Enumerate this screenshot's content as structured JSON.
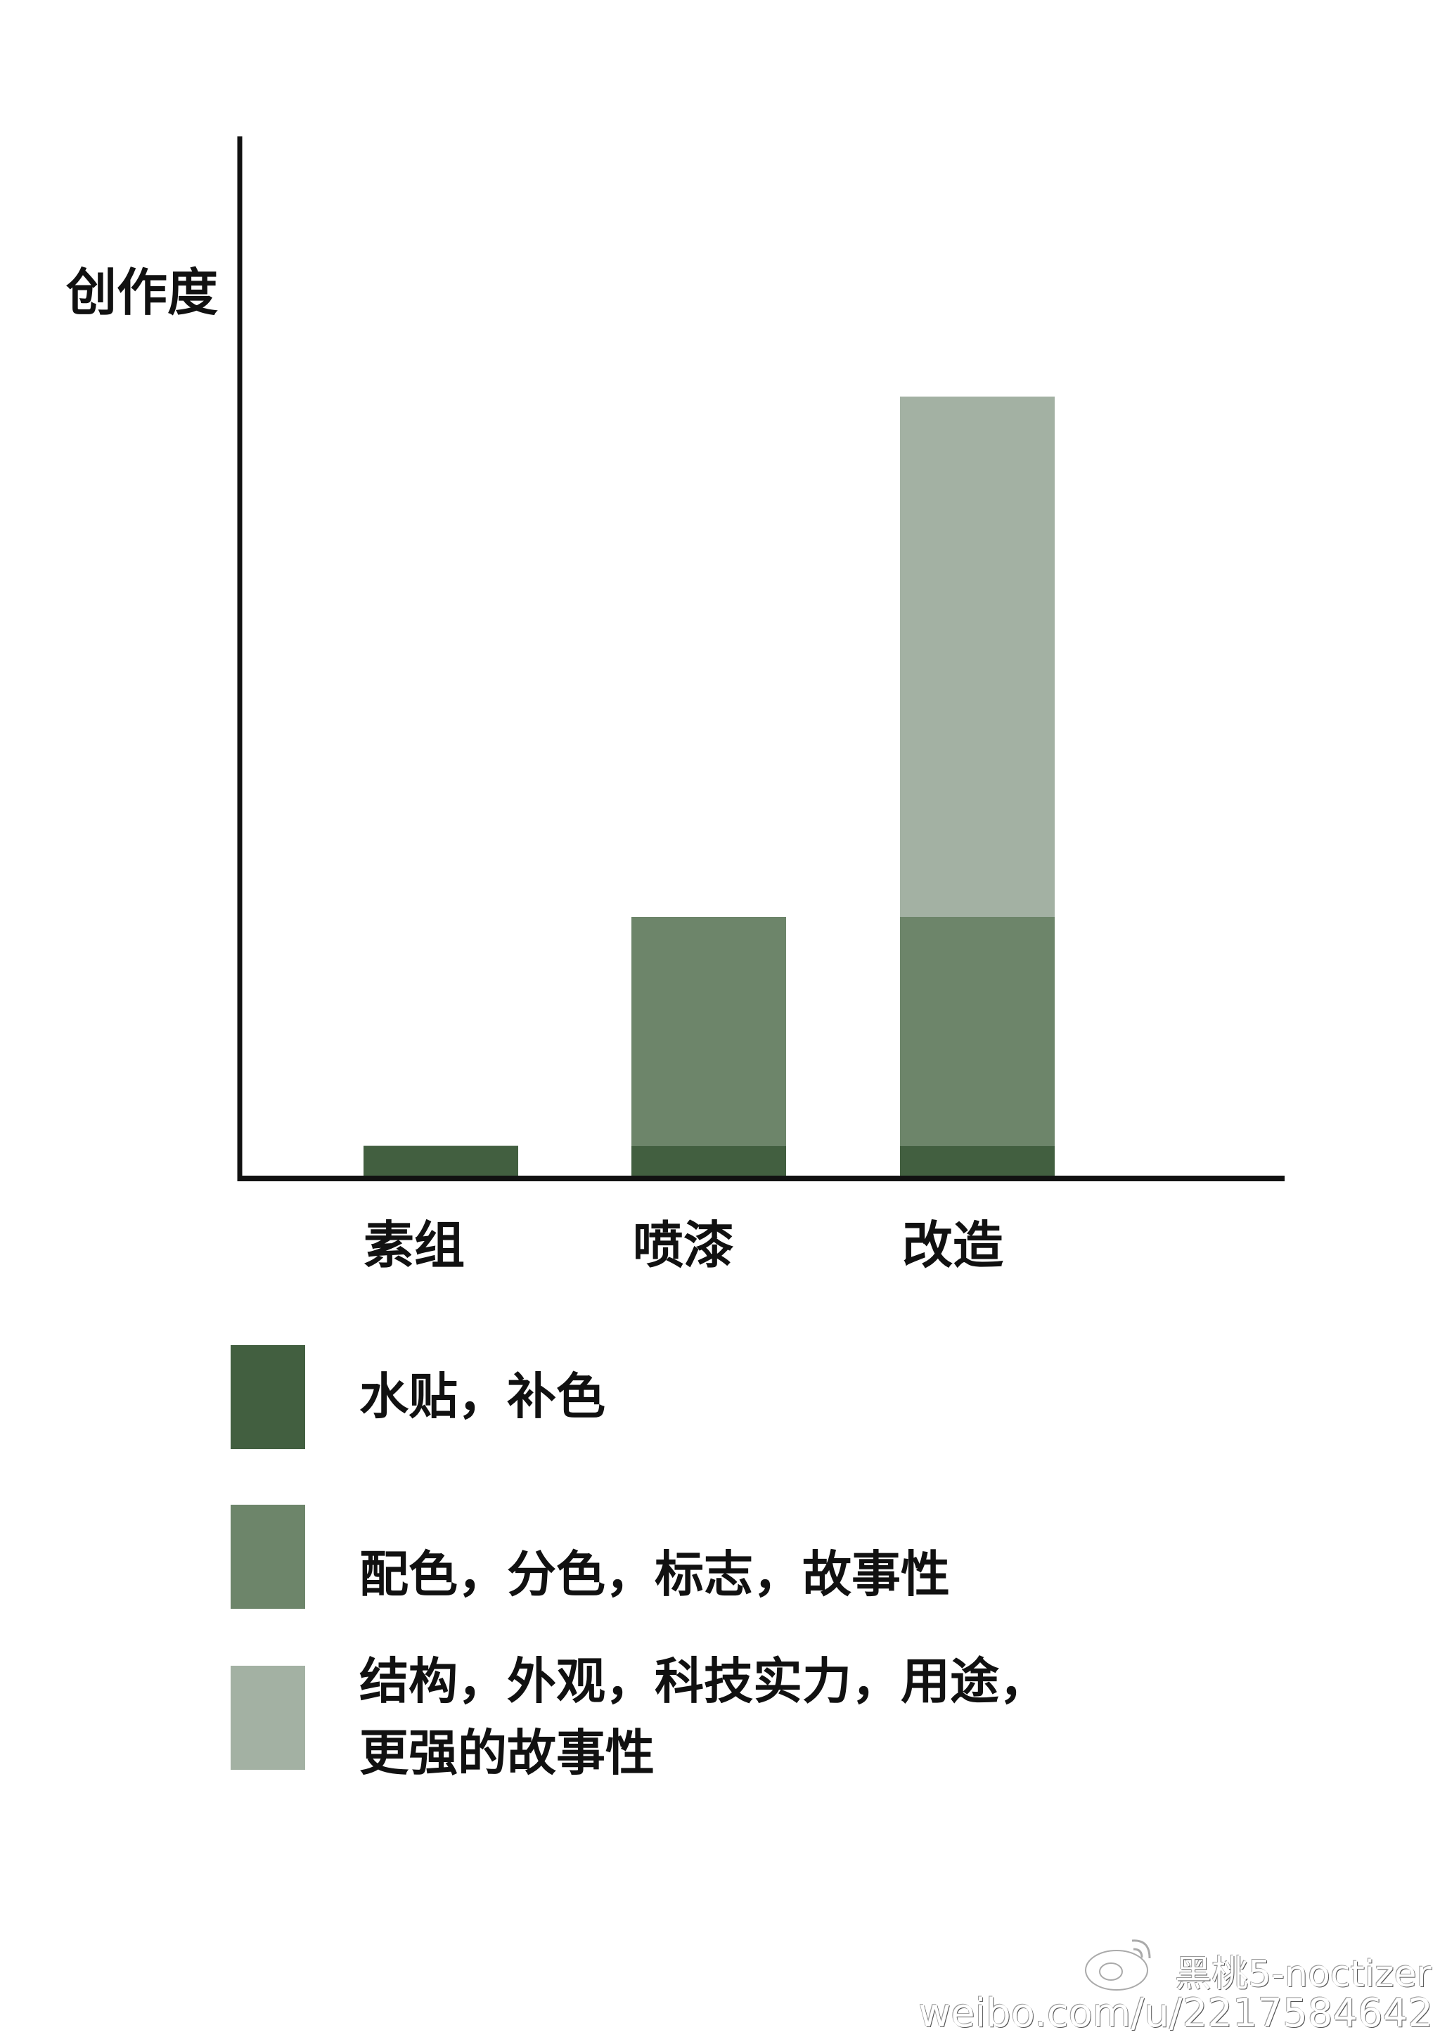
{
  "chart_data": {
    "type": "bar",
    "stacked": true,
    "ylabel": "创作度",
    "xlabel": "",
    "categories": [
      "素组",
      "喷漆",
      "改造"
    ],
    "ylim": [
      0,
      100
    ],
    "y_ticks_shown": false,
    "grid": false,
    "legend_position": "bottom",
    "series": [
      {
        "name": "水贴，补色",
        "color": "#425f40",
        "values": [
          3,
          3,
          3
        ]
      },
      {
        "name": "配色，分色，标志，故事性",
        "color": "#6d856a",
        "values": [
          0,
          22,
          22
        ]
      },
      {
        "name": "结构，外观，科技实力，用途，更强的故事性",
        "color": "#a3b1a3",
        "values": [
          0,
          0,
          50
        ]
      }
    ]
  },
  "legend": [
    {
      "label": "水贴，补色"
    },
    {
      "label": "配色，分色，标志，故事性"
    },
    {
      "label_line1": "结构，外观，科技实力，用途，",
      "label_line2": "更强的故事性"
    }
  ],
  "watermark": {
    "line1": "黑桃5-noctizer",
    "line2": "weibo.com/u/2217584642",
    "icon": "weibo-logo"
  }
}
